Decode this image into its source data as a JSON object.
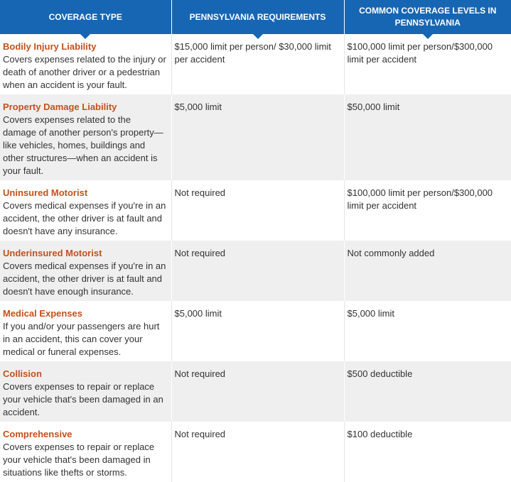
{
  "header": {
    "columns": [
      "Coverage Type",
      "Pennsylvania Requirements",
      "Common Coverage Levels in Pennsylvania"
    ]
  },
  "table": {
    "rows": [
      {
        "coverage": "Bodily Injury Liability",
        "description": "Covers expenses related to the injury or death of another driver or a pedestrian when an accident is your fault.",
        "requirement": "$15,000 limit per person/ $30,000 limit per accident",
        "common": "$100,000 limit per person/$300,000 limit per accident"
      },
      {
        "coverage": "Property Damage Liability",
        "description": "Covers expenses related to the damage of another person's property—like vehicles, homes, buildings and other structures—when an accident is your fault.",
        "requirement": "$5,000 limit",
        "common": "$50,000 limit"
      },
      {
        "coverage": "Uninsured Motorist",
        "description": "Covers medical expenses if you're in an accident, the other driver is at fault and doesn't have any insurance.",
        "requirement": "Not required",
        "common": "$100,000 limit per person/$300,000 limit per accident"
      },
      {
        "coverage": "Underinsured Motorist",
        "description": "Covers medical expenses if you're in an accident, the other driver is at fault and doesn't have enough insurance.",
        "requirement": "Not required",
        "common": "Not commonly added"
      },
      {
        "coverage": "Medical Expenses",
        "description": "If you and/or your passengers are hurt in an accident, this can cover your medical or funeral expenses.",
        "requirement": "$5,000 limit",
        "common": "$5,000 limit"
      },
      {
        "coverage": "Collision",
        "description": "Covers expenses to repair or replace your vehicle that's been damaged in an accident.",
        "requirement": "Not required",
        "common": "$500 deductible"
      },
      {
        "coverage": "Comprehensive",
        "description": "Covers expenses to repair or replace your vehicle that's been damaged in situations like thefts or storms.",
        "requirement": "Not required",
        "common": "$100 deductible"
      }
    ]
  }
}
